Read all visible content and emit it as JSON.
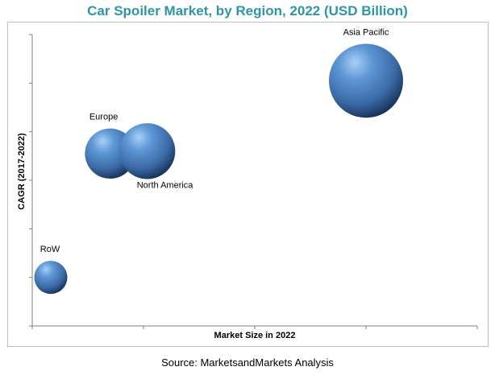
{
  "chart_data": {
    "type": "bubble",
    "title": "Car Spoiler Market, by Region, 2022 (USD Billion)",
    "xlabel": "Market Size in 2022",
    "ylabel": "CAGR (2017-2022)",
    "xlim": [
      0,
      600
    ],
    "ylim": [
      0,
      6
    ],
    "grid": false,
    "legend": "none",
    "points": [
      {
        "label": "Asia Pacific",
        "x": 450,
        "y": 5.05,
        "size": 1.0
      },
      {
        "label": "Europe",
        "x": 105,
        "y": 3.55,
        "size": 0.46
      },
      {
        "label": "North America",
        "x": 155,
        "y": 3.6,
        "size": 0.57
      },
      {
        "label": "RoW",
        "x": 25,
        "y": 1.0,
        "size": 0.2
      }
    ]
  },
  "source": "Source: MarketsandMarkets Analysis",
  "colors": {
    "title": "#2e95a8",
    "bubble_highlight": "#a8d0f5",
    "bubble_mid": "#4f86c6",
    "bubble_dark": "#142c4e",
    "axis": "#7f7f7f"
  }
}
